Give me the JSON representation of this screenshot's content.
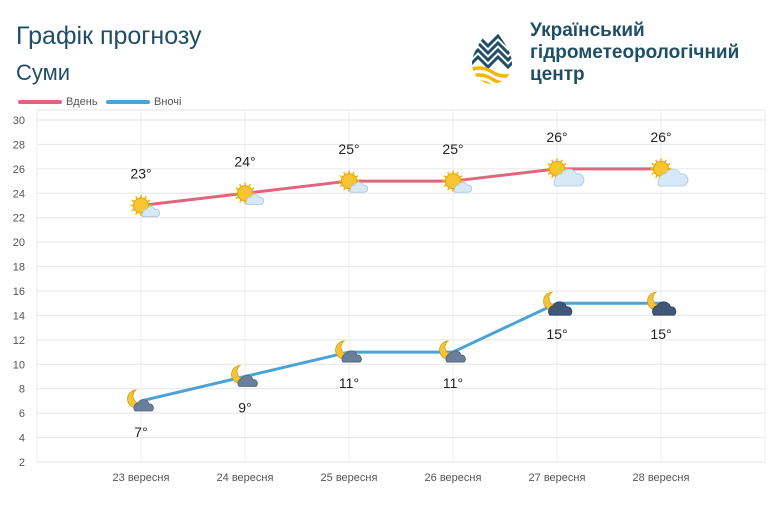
{
  "header": {
    "title": "Графік прогнозу",
    "city": "Суми"
  },
  "logo": {
    "line1": "Український",
    "line2": "гідрометеорологічний",
    "line3": "центр",
    "colors": {
      "dark": "#1f4e66",
      "accent": "#f2b705"
    }
  },
  "legend": [
    {
      "label": "Вдень",
      "color": "#e2657e"
    },
    {
      "label": "Вночі",
      "color": "#4aa3d4"
    }
  ],
  "chart_data": {
    "type": "line",
    "categories": [
      "23 вересня",
      "24 вересня",
      "25 вересня",
      "26 вересня",
      "27 вересня",
      "28 вересня"
    ],
    "series": [
      {
        "name": "Вдень",
        "values": [
          23,
          24,
          25,
          25,
          26,
          26
        ],
        "labels": [
          "23°",
          "24°",
          "25°",
          "25°",
          "26°",
          "26°"
        ],
        "icons": [
          "sun-small-cloud-icon",
          "sun-small-cloud-icon",
          "sun-small-cloud-icon",
          "sun-small-cloud-icon",
          "sun-cloud-icon",
          "sun-cloud-icon"
        ],
        "color": "#e2657e"
      },
      {
        "name": "Вночі",
        "values": [
          7,
          9,
          11,
          11,
          15,
          15
        ],
        "labels": [
          "7°",
          "9°",
          "11°",
          "11°",
          "15°",
          "15°"
        ],
        "icons": [
          "moon-cloud-icon",
          "moon-cloud-icon",
          "moon-cloud-icon",
          "moon-cloud-icon",
          "moon-dark-cloud-icon",
          "moon-dark-cloud-icon"
        ],
        "color": "#4aa3d4"
      }
    ],
    "ylim": [
      2,
      30
    ],
    "yticks": [
      "2",
      "4",
      "6",
      "8",
      "10",
      "12",
      "14",
      "16",
      "18",
      "20",
      "22",
      "24",
      "26",
      "28",
      "30"
    ],
    "grid": true,
    "legend_position": "top-left"
  }
}
